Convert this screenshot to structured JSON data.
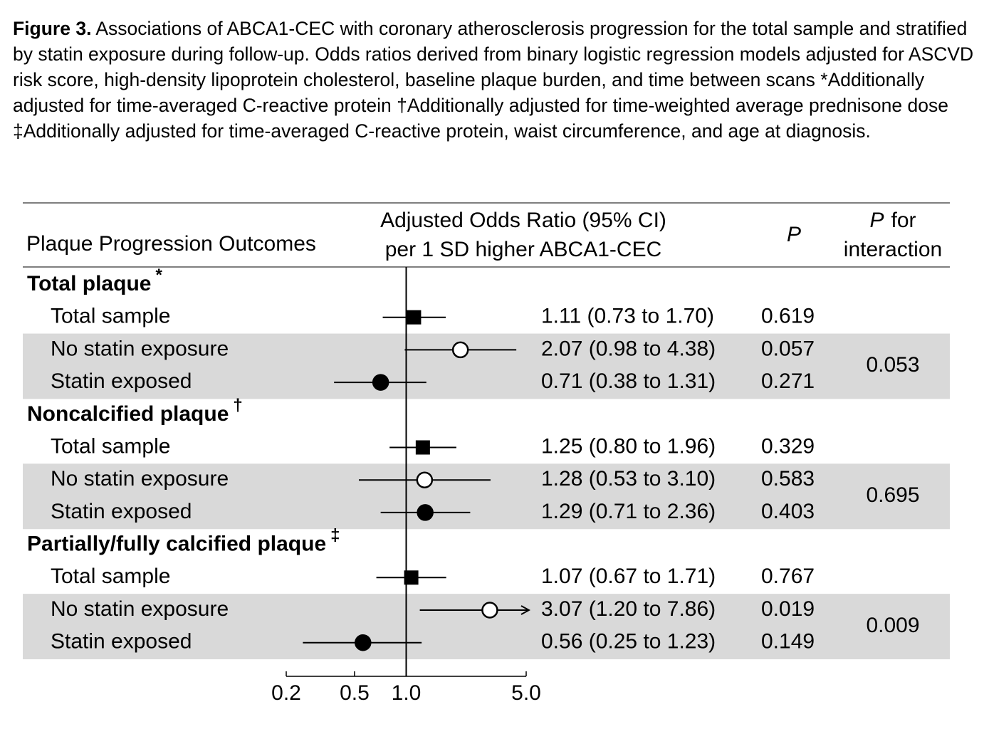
{
  "chart_data": {
    "type": "forest",
    "title": "Figure 3.",
    "caption": "Associations of ABCA1-CEC with coronary atherosclerosis progression for the total sample and stratified by statin exposure during follow-up. Odds ratios derived from binary logistic regression models adjusted for ASCVD risk score, high-density lipoprotein cholesterol, baseline plaque burden, and time between scans *Additionally adjusted for time-averaged C-reactive protein †Additionally adjusted for time-weighted average prednisone dose ‡Additionally adjusted for time-averaged C-reactive protein, waist circumference, and age at diagnosis.",
    "outcome_header": "Plaque Progression Outcomes",
    "or_header": [
      "Adjusted Odds Ratio (95% CI)",
      "per 1 SD higher ABCA1-CEC"
    ],
    "p_header": "P",
    "interaction_header": {
      "italic": "P",
      "rest": "for",
      "line2": "interaction"
    },
    "xscale": "log",
    "xlim": [
      0.2,
      5
    ],
    "xticks": [
      0.2,
      0.5,
      {
        "value": 1,
        "label": "1.0"
      },
      {
        "value": 5,
        "label": "5.0"
      }
    ],
    "reference": 1,
    "color": "#000000",
    "band_color": "#d9d9d9",
    "groups": [
      {
        "name": "Total plaque",
        "note": "*",
        "interaction_p": 0.053,
        "rows": [
          {
            "label": "Total sample",
            "or": 1.11,
            "ci_low": 0.73,
            "ci_high": 1.7,
            "or_label": "1.11 (0.73 to 1.70)",
            "p": 0.619,
            "marker": "square"
          },
          {
            "label": "No statin exposure",
            "or": 2.07,
            "ci_low": 0.98,
            "ci_high": 4.38,
            "or_label": "2.07 (0.98 to 4.38)",
            "p": 0.057,
            "marker": "open-circle"
          },
          {
            "label": "Statin exposed",
            "or": 0.71,
            "ci_low": 0.38,
            "ci_high": 1.31,
            "or_label": "0.71 (0.38 to 1.31)",
            "p": 0.271,
            "marker": "circle"
          }
        ]
      },
      {
        "name": "Noncalcified plaque",
        "note": "†",
        "interaction_p": 0.695,
        "rows": [
          {
            "label": "Total sample",
            "or": 1.25,
            "ci_low": 0.8,
            "ci_high": 1.96,
            "or_label": "1.25 (0.80 to 1.96)",
            "p": 0.329,
            "marker": "square"
          },
          {
            "label": "No statin exposure",
            "or": 1.28,
            "ci_low": 0.53,
            "ci_high": 3.1,
            "or_label": "1.28 (0.53 to 3.10)",
            "p": 0.583,
            "marker": "open-circle"
          },
          {
            "label": "Statin exposed",
            "or": 1.29,
            "ci_low": 0.71,
            "ci_high": 2.36,
            "or_label": "1.29 (0.71 to 2.36)",
            "p": 0.403,
            "marker": "circle"
          }
        ]
      },
      {
        "name": "Partially/fully calcified plaque",
        "note": "‡",
        "interaction_p": 0.009,
        "rows": [
          {
            "label": "Total sample",
            "or": 1.07,
            "ci_low": 0.67,
            "ci_high": 1.71,
            "or_label": "1.07 (0.67 to 1.71)",
            "p": 0.767,
            "marker": "square"
          },
          {
            "label": "No statin exposure",
            "or": 3.07,
            "ci_low": 1.2,
            "ci_high": 7.86,
            "or_label": "3.07 (1.20 to 7.86)",
            "p": 0.019,
            "marker": "open-circle"
          },
          {
            "label": "Statin exposed",
            "or": 0.56,
            "ci_low": 0.25,
            "ci_high": 1.23,
            "or_label": "0.56 (0.25 to 1.23)",
            "p": 0.149,
            "marker": "circle"
          }
        ]
      }
    ]
  }
}
